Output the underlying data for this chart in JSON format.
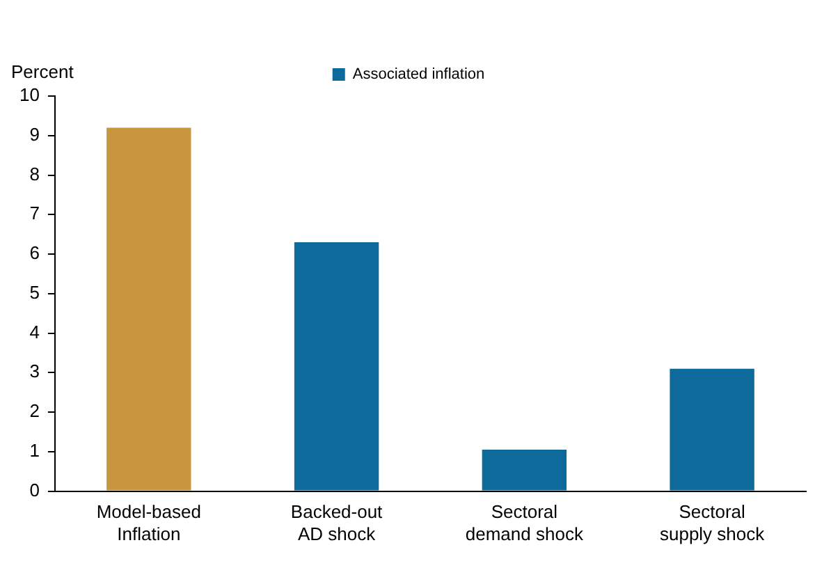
{
  "chart_data": {
    "type": "bar",
    "ylabel": "Percent",
    "categories": [
      "Model-based Inflation",
      "Backed-out AD shock",
      "Sectoral demand shock",
      "Sectoral supply shock"
    ],
    "series": [
      {
        "name": "Associated inflation",
        "color": "#0d6a9b",
        "colors": [
          "#c8963e",
          "#0d6a9b",
          "#0d6a9b",
          "#0d6a9b"
        ],
        "values": [
          9.2,
          6.3,
          1.05,
          3.1
        ]
      }
    ],
    "ylim": [
      0,
      10
    ],
    "yticks": [
      0,
      1,
      2,
      3,
      4,
      5,
      6,
      7,
      8,
      9,
      10
    ],
    "grid": false,
    "legend": "top"
  }
}
